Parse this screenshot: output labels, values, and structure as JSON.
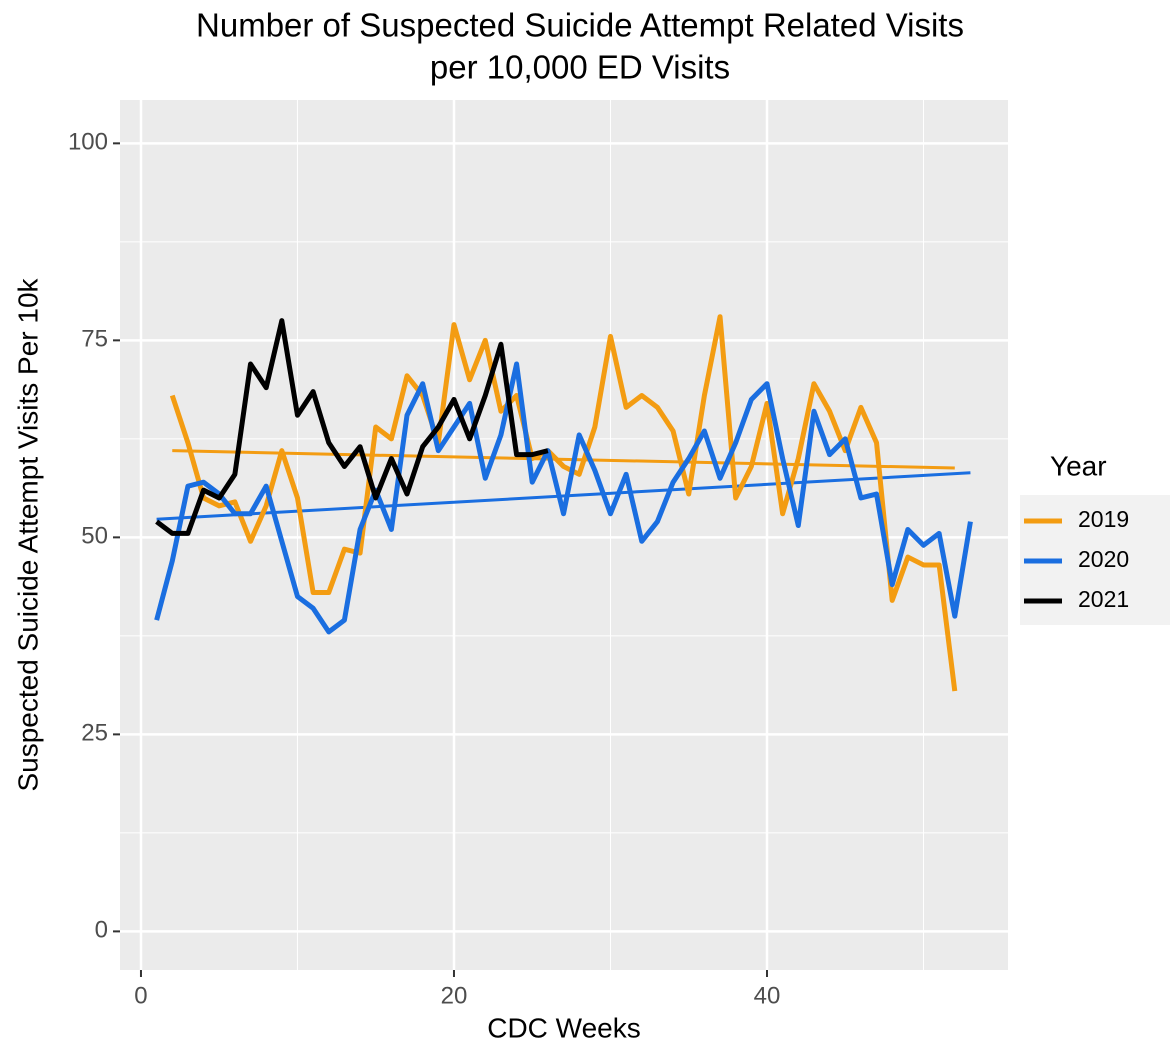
{
  "chart_data": {
    "type": "line",
    "title": "Number of Suspected Suicide Attempt Related Visits",
    "subtitle": "per 10,000 ED Visits",
    "x_label": "CDC Weeks",
    "y_label": "Suspected Suicide Attempt Visits Per 10k",
    "legend_title": "Year",
    "legend_position": "right",
    "grid": true,
    "xlim": [
      -1.34,
      55.4
    ],
    "ylim": [
      -4.9,
      105.5
    ],
    "xticks": [
      0,
      20,
      40
    ],
    "yticks": [
      0,
      25,
      50,
      75,
      100
    ],
    "x_minor_ticks": [
      10,
      30,
      50
    ],
    "y_minor_ticks": [
      12.5,
      37.5,
      62.5,
      87.5
    ],
    "series": [
      {
        "name": "2019",
        "color": "#f39c12",
        "x": [
          2,
          3,
          4,
          5,
          6,
          7,
          8,
          9,
          10,
          11,
          12,
          13,
          14,
          15,
          16,
          17,
          18,
          19,
          20,
          21,
          22,
          23,
          24,
          25,
          26,
          27,
          28,
          29,
          30,
          31,
          32,
          33,
          34,
          35,
          36,
          37,
          38,
          39,
          40,
          41,
          42,
          43,
          44,
          45,
          46,
          47,
          48,
          49,
          50,
          51,
          52
        ],
        "values": [
          68,
          62,
          55,
          54,
          54.5,
          49.5,
          54,
          61,
          55,
          43,
          43,
          48.5,
          48,
          64,
          62.5,
          70.5,
          68,
          62,
          77,
          70,
          75,
          66,
          68,
          60,
          61,
          59,
          58,
          64,
          75.5,
          66.5,
          68,
          66.5,
          63.5,
          55.5,
          68,
          78,
          55,
          59,
          67,
          53,
          60,
          69.5,
          66,
          61,
          66.5,
          62,
          42,
          47.5,
          46.5,
          46.5,
          30.5
        ]
      },
      {
        "name": "2020",
        "color": "#1a6ee0",
        "x": [
          1,
          2,
          3,
          4,
          5,
          6,
          7,
          8,
          9,
          10,
          11,
          12,
          13,
          14,
          15,
          16,
          17,
          18,
          19,
          20,
          21,
          22,
          23,
          24,
          25,
          26,
          27,
          28,
          29,
          30,
          31,
          32,
          33,
          34,
          35,
          36,
          37,
          38,
          39,
          40,
          41,
          42,
          43,
          44,
          45,
          46,
          47,
          48,
          49,
          50,
          51,
          52,
          53
        ],
        "values": [
          39.5,
          47,
          56.5,
          57,
          55.5,
          53,
          53,
          56.5,
          49.5,
          42.5,
          41,
          38,
          39.5,
          51,
          56,
          51,
          65.5,
          69.5,
          61,
          64,
          67,
          57.5,
          63,
          72,
          57,
          61,
          53,
          63,
          58.5,
          53,
          58,
          49.5,
          52,
          57,
          60,
          63.5,
          57.5,
          62,
          67.5,
          69.5,
          60,
          51.5,
          66,
          60.5,
          62.5,
          55,
          55.5,
          44,
          51,
          49,
          50.5,
          40,
          52
        ]
      },
      {
        "name": "2021",
        "color": "#000000",
        "x": [
          1,
          2,
          3,
          4,
          5,
          6,
          7,
          8,
          9,
          10,
          11,
          12,
          13,
          14,
          15,
          16,
          17,
          18,
          19,
          20,
          21,
          22,
          23,
          24,
          25,
          26
        ],
        "values": [
          52,
          50.5,
          50.5,
          56,
          55,
          58,
          72,
          69,
          77.5,
          65.5,
          68.5,
          62,
          59,
          61.5,
          55,
          60,
          55.5,
          61.5,
          64,
          67.5,
          62.5,
          68,
          74.5,
          60.5,
          60.5,
          61
        ]
      }
    ],
    "trends": [
      {
        "color": "#f39c12",
        "x": [
          2,
          52
        ],
        "values": [
          61,
          58.8
        ]
      },
      {
        "color": "#1a6ee0",
        "x": [
          1,
          53
        ],
        "values": [
          52.3,
          58.2
        ]
      }
    ]
  }
}
